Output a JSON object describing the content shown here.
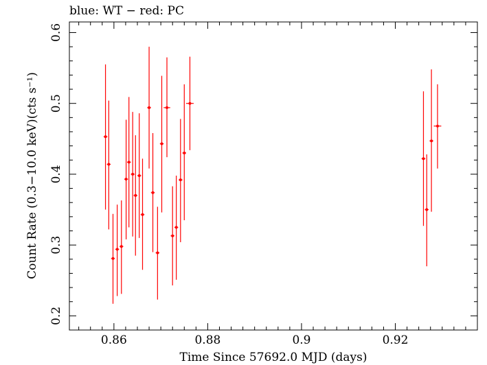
{
  "chart_data": {
    "type": "scatter",
    "title": "blue: WT − red: PC",
    "xlabel": "Time Since 57692.0 MJD (days)",
    "ylabel": "Count Rate (0.3−10.0 keV)(cts s⁻¹)",
    "xlim": [
      0.8505,
      0.9375
    ],
    "ylim": [
      0.18,
      0.615
    ],
    "xticks": [
      0.86,
      0.88,
      0.9,
      0.92
    ],
    "xtick_labels": [
      "0.86",
      "0.88",
      "0.9",
      "0.92"
    ],
    "yticks": [
      0.2,
      0.3,
      0.4,
      0.5,
      0.6
    ],
    "ytick_labels": [
      "0.2",
      "0.3",
      "0.4",
      "0.5",
      "0.6"
    ],
    "grid": false,
    "legend": "none",
    "series": [
      {
        "color": "#ff0000",
        "points": [
          {
            "x": 0.8582,
            "y": 0.453,
            "xerr": 0.0004,
            "ylo": 0.35,
            "yhi": 0.555
          },
          {
            "x": 0.8589,
            "y": 0.414,
            "xerr": 0.0004,
            "ylo": 0.322,
            "yhi": 0.504
          },
          {
            "x": 0.8598,
            "y": 0.281,
            "xerr": 0.0004,
            "ylo": 0.217,
            "yhi": 0.344
          },
          {
            "x": 0.8607,
            "y": 0.294,
            "xerr": 0.0004,
            "ylo": 0.228,
            "yhi": 0.357
          },
          {
            "x": 0.8616,
            "y": 0.298,
            "xerr": 0.0004,
            "ylo": 0.231,
            "yhi": 0.363
          },
          {
            "x": 0.8626,
            "y": 0.393,
            "xerr": 0.0004,
            "ylo": 0.308,
            "yhi": 0.477
          },
          {
            "x": 0.8632,
            "y": 0.417,
            "xerr": 0.0004,
            "ylo": 0.325,
            "yhi": 0.509
          },
          {
            "x": 0.864,
            "y": 0.4,
            "xerr": 0.0004,
            "ylo": 0.312,
            "yhi": 0.488
          },
          {
            "x": 0.8646,
            "y": 0.37,
            "xerr": 0.0004,
            "ylo": 0.285,
            "yhi": 0.455
          },
          {
            "x": 0.8654,
            "y": 0.398,
            "xerr": 0.0004,
            "ylo": 0.31,
            "yhi": 0.486
          },
          {
            "x": 0.8661,
            "y": 0.343,
            "xerr": 0.0004,
            "ylo": 0.265,
            "yhi": 0.422
          },
          {
            "x": 0.8675,
            "y": 0.494,
            "xerr": 0.0004,
            "ylo": 0.408,
            "yhi": 0.58
          },
          {
            "x": 0.8683,
            "y": 0.374,
            "xerr": 0.0004,
            "ylo": 0.29,
            "yhi": 0.458
          },
          {
            "x": 0.8693,
            "y": 0.289,
            "xerr": 0.0004,
            "ylo": 0.223,
            "yhi": 0.354
          },
          {
            "x": 0.8702,
            "y": 0.443,
            "xerr": 0.0004,
            "ylo": 0.346,
            "yhi": 0.539
          },
          {
            "x": 0.8713,
            "y": 0.494,
            "xerr": 0.0007,
            "ylo": 0.424,
            "yhi": 0.565
          },
          {
            "x": 0.8725,
            "y": 0.313,
            "xerr": 0.0004,
            "ylo": 0.243,
            "yhi": 0.383
          },
          {
            "x": 0.8733,
            "y": 0.325,
            "xerr": 0.0004,
            "ylo": 0.251,
            "yhi": 0.398
          },
          {
            "x": 0.8742,
            "y": 0.392,
            "xerr": 0.0004,
            "ylo": 0.304,
            "yhi": 0.478
          },
          {
            "x": 0.875,
            "y": 0.43,
            "xerr": 0.0004,
            "ylo": 0.335,
            "yhi": 0.527
          },
          {
            "x": 0.8762,
            "y": 0.5,
            "xerr": 0.0008,
            "ylo": 0.434,
            "yhi": 0.566
          },
          {
            "x": 0.926,
            "y": 0.422,
            "xerr": 0.0004,
            "ylo": 0.327,
            "yhi": 0.517
          },
          {
            "x": 0.9267,
            "y": 0.35,
            "xerr": 0.0004,
            "ylo": 0.27,
            "yhi": 0.428
          },
          {
            "x": 0.9277,
            "y": 0.447,
            "xerr": 0.0004,
            "ylo": 0.347,
            "yhi": 0.548
          },
          {
            "x": 0.929,
            "y": 0.468,
            "xerr": 0.0008,
            "ylo": 0.408,
            "yhi": 0.527
          }
        ]
      }
    ]
  }
}
